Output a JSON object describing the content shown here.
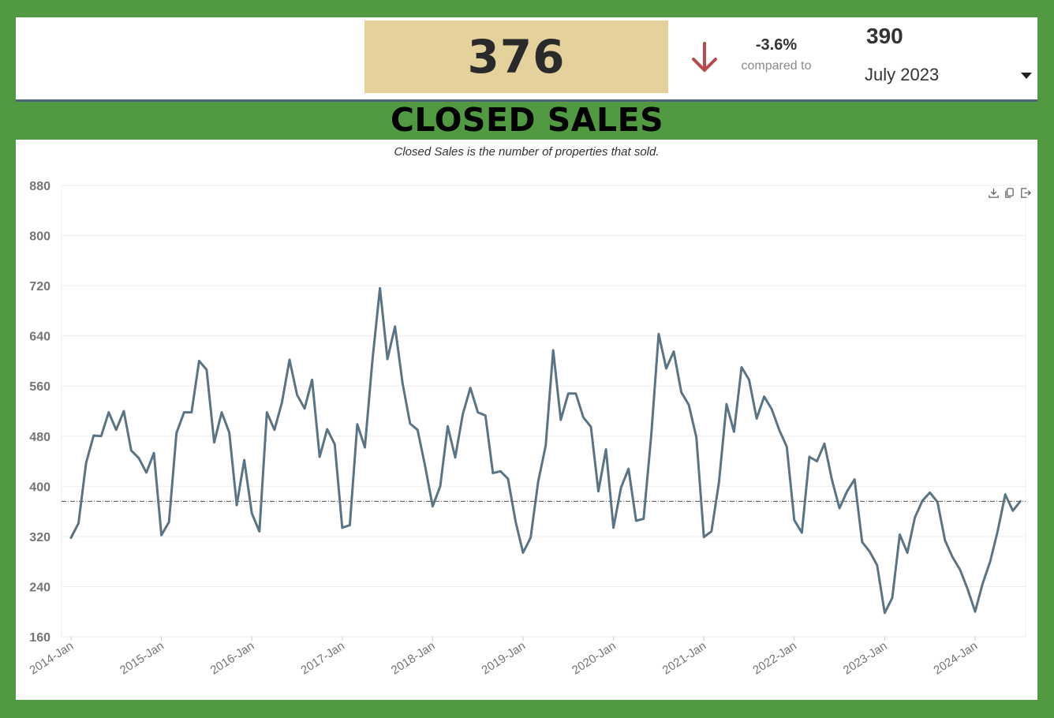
{
  "kpi": {
    "value": "376",
    "change_pct": "-3.6%",
    "compared_to_label": "compared to",
    "compare_value": "390",
    "period": "July 2023",
    "trend": "down",
    "box_color": "#e4d19c",
    "arrow_color": "#b84a4a"
  },
  "section_title": "CLOSED SALES",
  "icons": [
    "download-icon",
    "copy-icon",
    "export-icon",
    "arrow-down-icon",
    "chevron-down-icon"
  ],
  "chart_data": {
    "type": "line",
    "subtitle": "Closed Sales is the number of properties that sold.",
    "xlabel": "",
    "ylabel": "",
    "ylim": [
      160,
      880
    ],
    "yticks": [
      160,
      240,
      320,
      400,
      480,
      560,
      640,
      720,
      800,
      880
    ],
    "xtick_labels": [
      "2014-Jan",
      "2015-Jan",
      "2016-Jan",
      "2017-Jan",
      "2018-Jan",
      "2019-Jan",
      "2020-Jan",
      "2021-Jan",
      "2022-Jan",
      "2023-Jan",
      "2024-Jan"
    ],
    "x_start": "2014-Jan",
    "grid": true,
    "line_color": "#5a7385",
    "reference_line": 376,
    "series": [
      {
        "values": [
          318,
          341,
          437,
          481,
          480,
          518,
          490,
          520,
          457,
          445,
          422,
          453,
          322,
          343,
          485,
          518,
          518,
          600,
          586,
          470,
          518,
          486,
          370,
          442,
          357,
          328,
          518,
          490,
          534,
          602,
          546,
          524,
          570,
          447,
          491,
          467,
          334,
          338,
          499,
          462,
          600,
          716,
          603,
          655,
          565,
          500,
          490,
          432,
          368,
          400,
          496,
          446,
          515,
          557,
          518,
          513,
          421,
          424,
          412,
          344,
          294,
          318,
          407,
          465,
          617,
          506,
          548,
          548,
          510,
          495,
          392,
          459,
          334,
          398,
          428,
          345,
          348,
          480,
          643,
          588,
          615,
          550,
          530,
          478,
          319,
          328,
          406,
          531,
          487,
          590,
          570,
          508,
          543,
          523,
          490,
          463,
          346,
          326,
          447,
          440,
          468,
          410,
          365,
          392,
          411,
          311,
          296,
          274,
          198,
          222,
          323,
          294,
          350,
          377,
          390,
          375,
          314,
          287,
          267,
          236,
          200,
          245,
          280,
          329,
          387,
          361,
          376
        ]
      }
    ]
  }
}
